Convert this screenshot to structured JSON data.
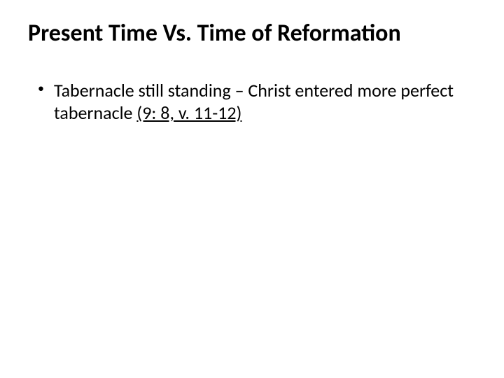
{
  "slide": {
    "title": "Present Time Vs. Time of Reformation",
    "title_fontsize": 34,
    "title_color": "#000000",
    "background_color": "#ffffff",
    "bullets": [
      {
        "text_plain": "Tabernacle still standing – Christ entered more perfect tabernacle ",
        "text_underlined": "(9: 8, v. 11-12)",
        "fontsize": 26,
        "color": "#000000"
      }
    ],
    "bullet_marker": "•"
  }
}
